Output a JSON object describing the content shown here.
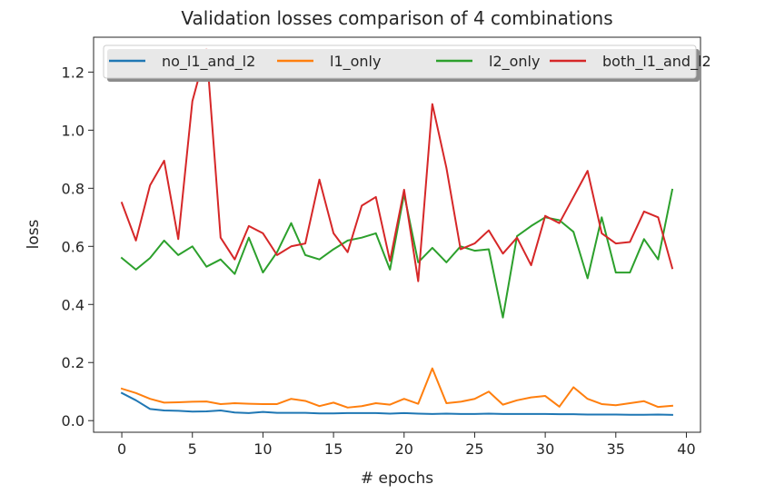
{
  "chart_data": {
    "type": "line",
    "title": "Validation losses comparison of 4 combinations",
    "xlabel": "# epochs",
    "ylabel": "loss",
    "xlim": [
      -2,
      41
    ],
    "ylim": [
      -0.04,
      1.32
    ],
    "x_ticks": [
      0,
      5,
      10,
      15,
      20,
      25,
      30,
      35,
      40
    ],
    "y_ticks": [
      0.0,
      0.2,
      0.4,
      0.6,
      0.8,
      1.0,
      1.2
    ],
    "grid": false,
    "legend_placement": "top",
    "x": [
      0,
      1,
      2,
      3,
      4,
      5,
      6,
      7,
      8,
      9,
      10,
      11,
      12,
      13,
      14,
      15,
      16,
      17,
      18,
      19,
      20,
      21,
      22,
      23,
      24,
      25,
      26,
      27,
      28,
      29,
      30,
      31,
      32,
      33,
      34,
      35,
      36,
      37,
      38,
      39
    ],
    "series": [
      {
        "name": "no_l1_and_l2",
        "color": "#1f77b4",
        "values": [
          0.095,
          0.07,
          0.04,
          0.035,
          0.034,
          0.031,
          0.032,
          0.035,
          0.028,
          0.026,
          0.03,
          0.027,
          0.027,
          0.027,
          0.025,
          0.025,
          0.026,
          0.026,
          0.026,
          0.024,
          0.026,
          0.024,
          0.023,
          0.024,
          0.023,
          0.023,
          0.024,
          0.023,
          0.023,
          0.023,
          0.023,
          0.022,
          0.022,
          0.021,
          0.021,
          0.021,
          0.02,
          0.02,
          0.021,
          0.02
        ]
      },
      {
        "name": "l1_only",
        "color": "#ff7f0e",
        "values": [
          0.11,
          0.095,
          0.075,
          0.062,
          0.063,
          0.065,
          0.066,
          0.057,
          0.06,
          0.058,
          0.057,
          0.057,
          0.075,
          0.068,
          0.05,
          0.062,
          0.045,
          0.05,
          0.06,
          0.055,
          0.075,
          0.058,
          0.18,
          0.06,
          0.065,
          0.075,
          0.1,
          0.055,
          0.07,
          0.08,
          0.085,
          0.048,
          0.115,
          0.075,
          0.057,
          0.053,
          0.06,
          0.067,
          0.047,
          0.051
        ]
      },
      {
        "name": "l2_only",
        "color": "#2ca02c",
        "values": [
          0.56,
          0.52,
          0.56,
          0.62,
          0.57,
          0.6,
          0.53,
          0.555,
          0.505,
          0.63,
          0.51,
          0.58,
          0.68,
          0.57,
          0.555,
          0.59,
          0.62,
          0.63,
          0.645,
          0.52,
          0.78,
          0.545,
          0.595,
          0.545,
          0.6,
          0.585,
          0.59,
          0.355,
          0.635,
          0.67,
          0.7,
          0.69,
          0.65,
          0.49,
          0.7,
          0.51,
          0.51,
          0.625,
          0.555,
          0.795
        ]
      },
      {
        "name": "both_l1_and_l2",
        "color": "#d62728",
        "values": [
          0.75,
          0.62,
          0.81,
          0.895,
          0.625,
          1.1,
          1.28,
          0.63,
          0.555,
          0.67,
          0.645,
          0.57,
          0.6,
          0.61,
          0.83,
          0.645,
          0.58,
          0.74,
          0.77,
          0.55,
          0.795,
          0.48,
          1.09,
          0.87,
          0.59,
          0.61,
          0.655,
          0.575,
          0.63,
          0.535,
          0.705,
          0.68,
          0.77,
          0.86,
          0.645,
          0.61,
          0.615,
          0.72,
          0.7,
          0.525
        ]
      }
    ]
  }
}
